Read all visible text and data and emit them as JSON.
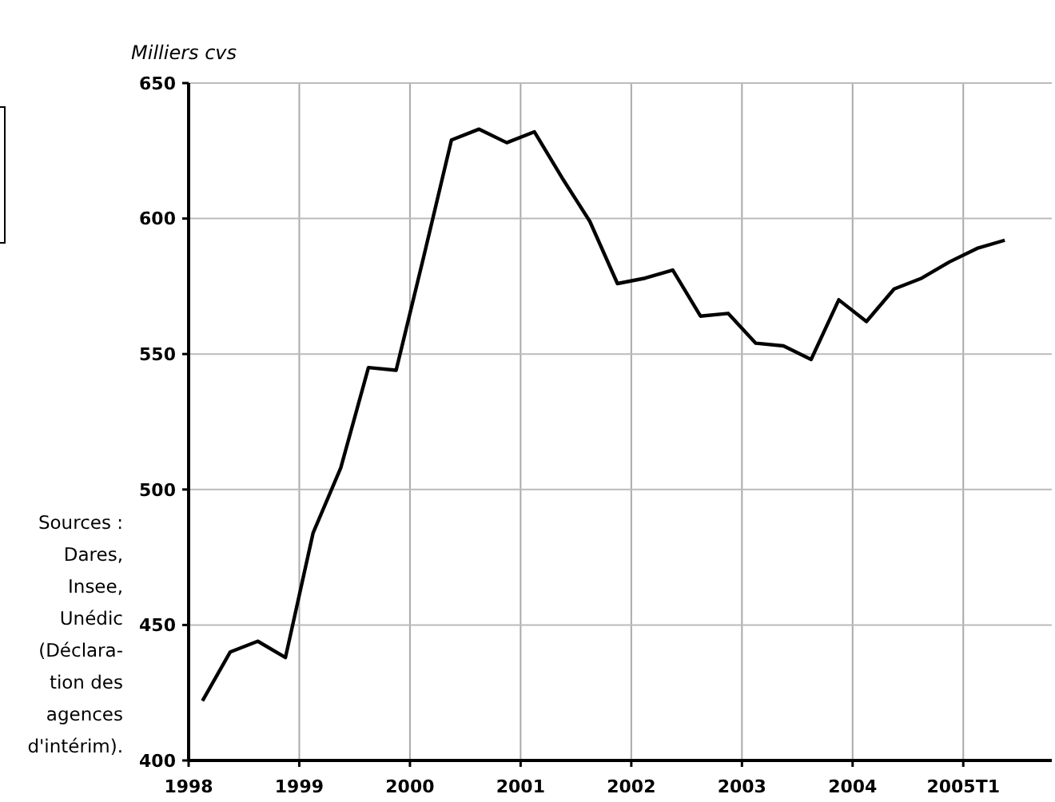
{
  "chart_data": {
    "type": "line",
    "ylabel": "Milliers cvs",
    "annotations": [
      "Sources :\nDares,\nInsee,\nUnédic\n(Déclara-\ntion des\nagences\nd'intérim)."
    ],
    "x": [
      1998.125,
      1998.375,
      1998.625,
      1998.875,
      1999.125,
      1999.375,
      1999.625,
      1999.875,
      2000.125,
      2000.375,
      2000.625,
      2000.875,
      2001.125,
      2001.375,
      2001.625,
      2001.875,
      2002.125,
      2002.375,
      2002.625,
      2002.875,
      2003.125,
      2003.375,
      2003.625,
      2003.875,
      2004.125,
      2004.375,
      2004.625,
      2004.875,
      2005.125,
      2005.375
    ],
    "series": [
      {
        "color": "#000000",
        "values": [
          422,
          440,
          444,
          438,
          484,
          508,
          545,
          544,
          586,
          629,
          633,
          628,
          632,
          615,
          599,
          576,
          578,
          581,
          564,
          565,
          554,
          553,
          548,
          570,
          562,
          574,
          578,
          584,
          589,
          592
        ]
      }
    ],
    "xlim": [
      1998,
      2005.8
    ],
    "xticks": [
      1998,
      1999,
      2000,
      2001,
      2002,
      2003,
      2004,
      {
        "value": 2005,
        "label": "2005T1"
      }
    ],
    "ylim": [
      400,
      650
    ],
    "yticks": [
      400,
      450,
      500,
      550,
      600,
      650
    ],
    "grid": true,
    "marker": "none",
    "line_style": "solid"
  }
}
